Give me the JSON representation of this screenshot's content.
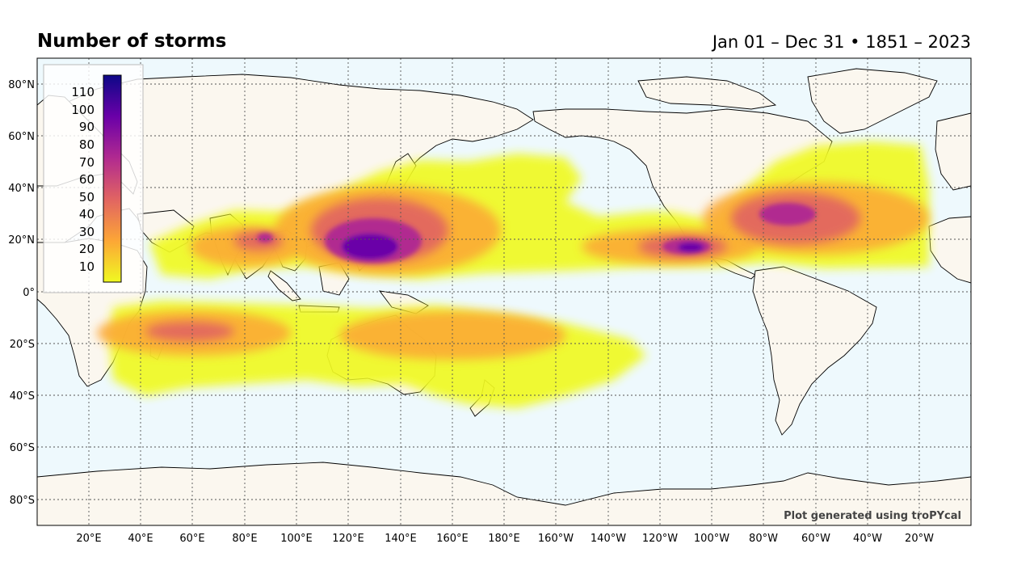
{
  "title": "Number of storms",
  "subtitle": "Jan 01 – Dec 31 • 1851 – 2023",
  "credit": "Plot generated using troPYcal",
  "map": {
    "projection": "PlateCarree (center 180°)",
    "lon_range": [
      0,
      360
    ],
    "lat_range": [
      -90,
      90
    ],
    "ocean_color": "#eef9fd",
    "land_color": "#fbf7ef",
    "gridlines": true,
    "lat_ticks": [
      "80°N",
      "60°N",
      "40°N",
      "20°N",
      "0°",
      "20°S",
      "40°S",
      "60°S",
      "80°S"
    ],
    "lon_ticks": [
      "20°E",
      "40°E",
      "60°E",
      "80°E",
      "100°E",
      "120°E",
      "140°E",
      "160°E",
      "180°E",
      "160°W",
      "140°W",
      "120°W",
      "100°W",
      "80°W",
      "60°W",
      "40°W",
      "20°W"
    ]
  },
  "colorbar": {
    "ticks": [
      "10",
      "20",
      "30",
      "40",
      "50",
      "60",
      "70",
      "80",
      "90",
      "100",
      "110"
    ],
    "colormap": "plasma_r",
    "min": 1,
    "max": 115,
    "colors": [
      "#f0f921",
      "#fca636",
      "#e16462",
      "#b12a90",
      "#6a00a8",
      "#0d0887"
    ]
  },
  "chart_data": {
    "type": "heatmap",
    "title": "Number of storms",
    "subtitle": "Jan 01 – Dec 31 • 1851 – 2023",
    "value_range": [
      1,
      115
    ],
    "regions": [
      {
        "lon_range": [
          120,
          150
        ],
        "lat_range": [
          8,
          28
        ],
        "peak": 112
      },
      {
        "lon_range": [
          235,
          260
        ],
        "lat_range": [
          10,
          22
        ],
        "peak": 115
      },
      {
        "lon_range": [
          270,
          310
        ],
        "lat_range": [
          18,
          40
        ],
        "peak": 85
      },
      {
        "lon_range": [
          80,
          95
        ],
        "lat_range": [
          15,
          24
        ],
        "peak": 65
      },
      {
        "lon_range": [
          50,
          70
        ],
        "lat_range": [
          -22,
          -10
        ],
        "peak": 40
      },
      {
        "lon_range": [
          150,
          190
        ],
        "lat_range": [
          -25,
          -10
        ],
        "peak": 35
      }
    ]
  }
}
